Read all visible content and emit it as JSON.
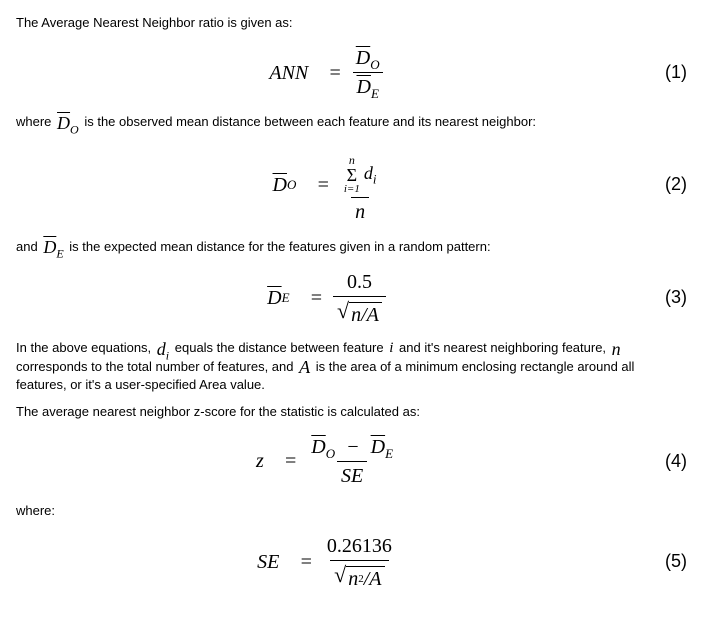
{
  "colors": {
    "text": "#000000",
    "background": "#ffffff",
    "rule": "#000000"
  },
  "font": {
    "body_family": "Arial",
    "body_size_pt": 10,
    "math_family": "Times New Roman",
    "math_size_pt": 15
  },
  "paragraphs": {
    "p1": "The Average Nearest Neighbor ratio is given as:",
    "p2a": "where ",
    "p2b": " is the observed mean distance between each feature and its nearest neighbor:",
    "p3a": "and ",
    "p3b": " is the expected mean distance for the features given in a random pattern:",
    "p4a": "In the above equations, ",
    "p4b": " equals the distance between feature ",
    "p4c": " and it's nearest neighboring feature, ",
    "p4d": " corresponds to the total number of features, and ",
    "p4e": " is the area of a minimum enclosing rectangle around all features, or it's a user-specified Area value.",
    "p5": "The average nearest neighbor z-score for the statistic is calculated as:",
    "p6": "where:"
  },
  "symbols": {
    "ANN": "ANN",
    "Do_bar": "D",
    "Do_sub": "O",
    "De_bar": "D",
    "De_sub": "E",
    "di": "d",
    "di_sub": "i",
    "n": "n",
    "A": "A",
    "i": "i",
    "z": "z",
    "SE": "SE",
    "half": "0.5",
    "se_const": "0.26136",
    "sigma_top": "n",
    "sigma_bot": "i=1",
    "n_over_A": "n/A",
    "n2_over_A_pre": "n",
    "n2_over_A_post": "/A",
    "minus": "−",
    "equals": "="
  },
  "equation_numbers": {
    "eq1": "(1)",
    "eq2": "(2)",
    "eq3": "(3)",
    "eq4": "(4)",
    "eq5": "(5)"
  }
}
